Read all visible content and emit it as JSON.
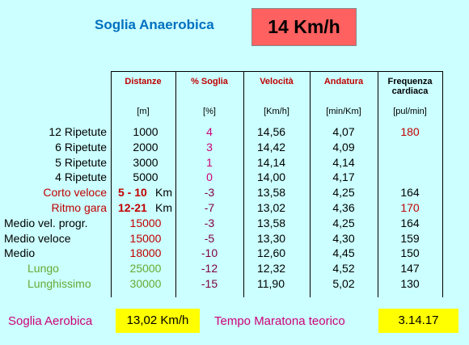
{
  "header": {
    "title": "Soglia Anaerobica",
    "value": "14 Km/h"
  },
  "table": {
    "columns": [
      "Distanze",
      "% Soglia",
      "Velocità",
      "Andatura",
      "Frequenza cardiaca"
    ],
    "units": [
      "[m]",
      "[%]",
      "[Km/h]",
      "[min/Km]",
      "[pul/min]"
    ],
    "rows": [
      {
        "label": "12 Ripetute",
        "distance": "1000",
        "percent": "4",
        "speed": "14,56",
        "pace": "4,07",
        "heart_rate": "180"
      },
      {
        "label": "6 Ripetute",
        "distance": "2000",
        "percent": "3",
        "speed": "14,42",
        "pace": "4,09",
        "heart_rate": null
      },
      {
        "label": "5 Ripetute",
        "distance": "3000",
        "percent": "1",
        "speed": "14,14",
        "pace": "4,14",
        "heart_rate": null
      },
      {
        "label": "4 Ripetute",
        "distance": "5000",
        "percent": "0",
        "speed": "14,00",
        "pace": "4,17",
        "heart_rate": null
      },
      {
        "label": "Corto veloce",
        "distance": "5 - 10",
        "unit": "Km",
        "percent": "-3",
        "speed": "13,58",
        "pace": "4,25",
        "heart_rate": "164"
      },
      {
        "label": "Ritmo gara",
        "distance": "12-21",
        "unit": "Km",
        "percent": "-7",
        "speed": "13,02",
        "pace": "4,36",
        "heart_rate": "170"
      },
      {
        "label": "Medio vel. progr.",
        "distance": "15000",
        "percent": "-3",
        "speed": "13,58",
        "pace": "4,25",
        "heart_rate": "164"
      },
      {
        "label": "Medio veloce",
        "distance": "15000",
        "percent": "-5",
        "speed": "13,30",
        "pace": "4,30",
        "heart_rate": "159"
      },
      {
        "label": "Medio",
        "distance": "18000",
        "percent": "-10",
        "speed": "12,60",
        "pace": "4,45",
        "heart_rate": "150"
      },
      {
        "label": "Lungo",
        "distance": "25000",
        "percent": "-12",
        "speed": "12,32",
        "pace": "4,52",
        "heart_rate": "147"
      },
      {
        "label": "Lunghissimo",
        "distance": "30000",
        "percent": "-15",
        "speed": "11,90",
        "pace": "5,02",
        "heart_rate": "130"
      }
    ]
  },
  "footer": {
    "aerobic_label": "Soglia Aerobica",
    "aerobic_value": "13,02 Km/h",
    "marathon_label": "Tempo Maratona teorico",
    "marathon_value": "3.14.17"
  }
}
